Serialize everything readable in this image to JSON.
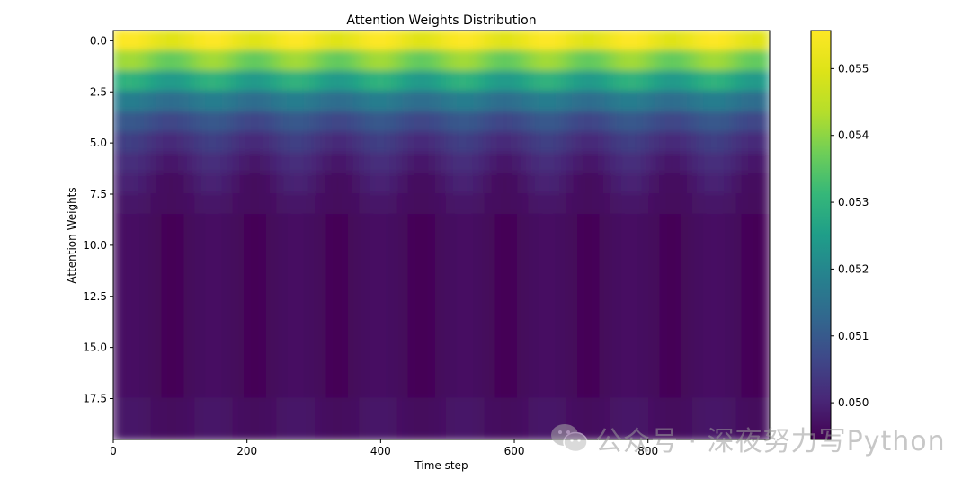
{
  "chart_data": {
    "type": "heatmap",
    "title": "Attention Weights Distribution",
    "xlabel": "Time step",
    "ylabel": "Attention Weights",
    "colormap": "viridis",
    "x_range": [
      0,
      982
    ],
    "y_range": [
      -0.5,
      19.5
    ],
    "y_inverted": true,
    "x_ticks": [
      "0",
      "200",
      "400",
      "600",
      "800"
    ],
    "x_tick_values": [
      0,
      200,
      400,
      600,
      800
    ],
    "y_ticks": [
      "0.0",
      "2.5",
      "5.0",
      "7.5",
      "10.0",
      "12.5",
      "15.0",
      "17.5"
    ],
    "y_tick_values": [
      0,
      2.5,
      5,
      7.5,
      10,
      12.5,
      15,
      17.5
    ],
    "colorbar": {
      "range": [
        0.04945,
        0.05557
      ],
      "ticks": [
        "0.050",
        "0.051",
        "0.052",
        "0.053",
        "0.054",
        "0.055"
      ],
      "tick_values": [
        0.05,
        0.051,
        0.052,
        0.053,
        0.054,
        0.055
      ]
    },
    "rows": 20,
    "row_mean_weights": [
      0.0553,
      0.0539,
      0.0527,
      0.0516,
      0.0508,
      0.0503,
      0.05,
      0.0498,
      0.0497,
      0.0496,
      0.0496,
      0.0496,
      0.0496,
      0.0496,
      0.0496,
      0.0496,
      0.0496,
      0.0496,
      0.0497,
      0.0497
    ],
    "periodic_peaks_x": [
      25,
      150,
      275,
      400,
      525,
      650,
      775,
      900
    ],
    "row_amplitude": [
      0.0003,
      0.0003,
      0.0003,
      0.0002,
      0.0002,
      0.0002,
      0.0002,
      0.0002,
      0.0001,
      0.0001,
      0.0001,
      0.0001,
      0.0001,
      0.0001,
      0.0001,
      0.0001,
      0.0001,
      0.0001,
      0.0001,
      0.0001
    ]
  },
  "watermark": {
    "text": "公众号 · 深夜努力写Python",
    "icon": "wechat-icon"
  }
}
